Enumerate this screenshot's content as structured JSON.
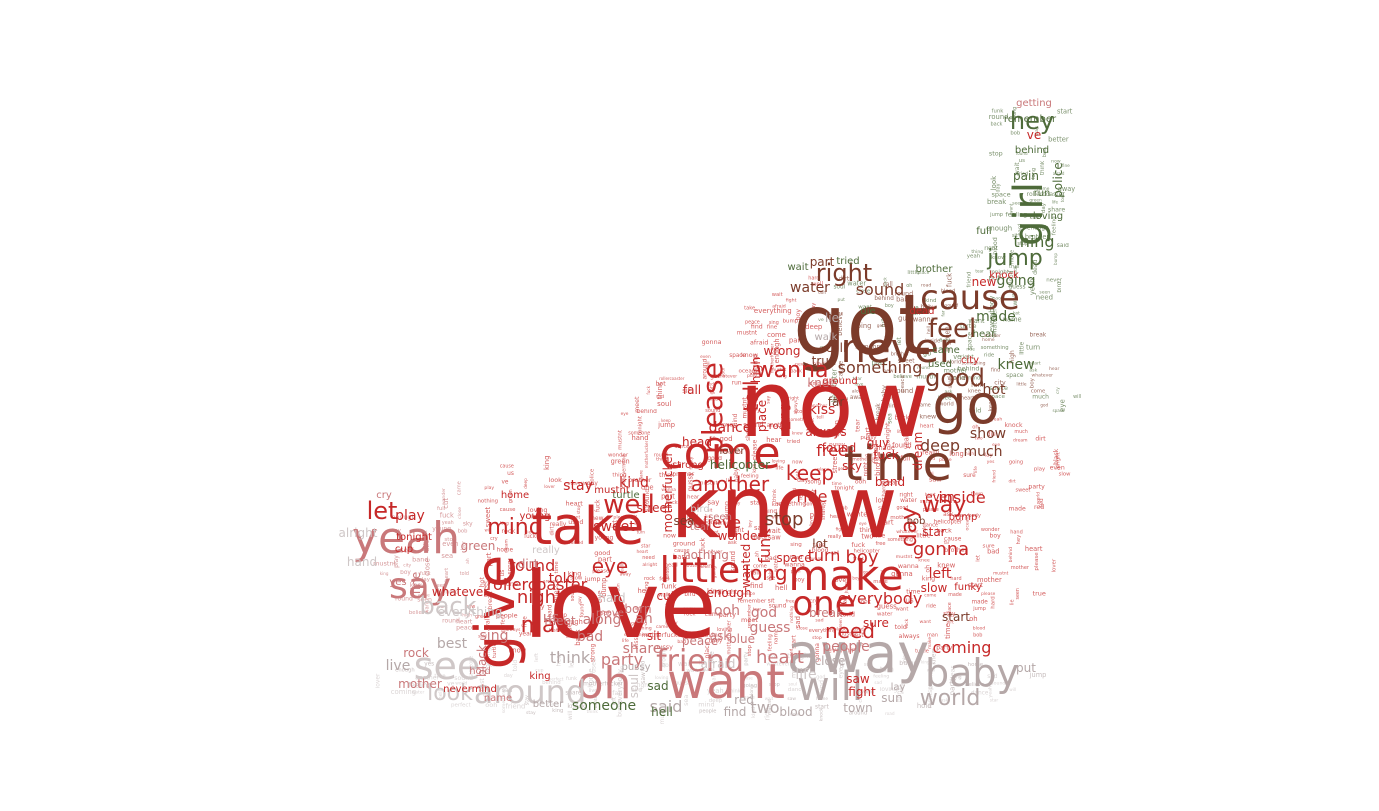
{
  "word_cloud": {
    "shape": "chili-pepper",
    "palette": {
      "red": "#c62828",
      "brown": "#7b3b2a",
      "pink": "#c9787a",
      "gray": "#b5a8a8",
      "green": "#4e6b3a",
      "light_gray": "#cfc7c7"
    },
    "words": [
      {
        "text": "now",
        "color": "red"
      },
      {
        "text": "know",
        "color": "red"
      },
      {
        "text": "love",
        "color": "red"
      },
      {
        "text": "got",
        "color": "brown"
      },
      {
        "text": "away",
        "color": "gray"
      },
      {
        "text": "take",
        "color": "red"
      },
      {
        "text": "give",
        "color": "red"
      },
      {
        "text": "time",
        "color": "brown"
      },
      {
        "text": "come",
        "color": "red"
      },
      {
        "text": "go",
        "color": "brown"
      },
      {
        "text": "make",
        "color": "red"
      },
      {
        "text": "never",
        "color": "brown"
      },
      {
        "text": "yeah",
        "color": "pink"
      },
      {
        "text": "want",
        "color": "pink"
      },
      {
        "text": "oh",
        "color": "pink"
      },
      {
        "text": "will",
        "color": "gray"
      },
      {
        "text": "baby",
        "color": "gray"
      },
      {
        "text": "girl",
        "color": "green"
      },
      {
        "text": "cause",
        "color": "brown"
      },
      {
        "text": "say",
        "color": "pink"
      },
      {
        "text": "little",
        "color": "red"
      },
      {
        "text": "see",
        "color": "light_gray"
      },
      {
        "text": "around",
        "color": "light_gray"
      },
      {
        "text": "one",
        "color": "red"
      },
      {
        "text": "feel",
        "color": "brown"
      },
      {
        "text": "good",
        "color": "brown"
      },
      {
        "text": "right",
        "color": "brown"
      },
      {
        "text": "hey",
        "color": "green"
      },
      {
        "text": "jump",
        "color": "green"
      },
      {
        "text": "friend",
        "color": "pink"
      },
      {
        "text": "well",
        "color": "red"
      },
      {
        "text": "please",
        "color": "red"
      },
      {
        "text": "day",
        "color": "red"
      },
      {
        "text": "way",
        "color": "red"
      },
      {
        "text": "need",
        "color": "red"
      },
      {
        "text": "let",
        "color": "red"
      },
      {
        "text": "mind",
        "color": "red"
      },
      {
        "text": "man",
        "color": "red"
      },
      {
        "text": "back",
        "color": "light_gray"
      },
      {
        "text": "world",
        "color": "gray"
      },
      {
        "text": "look",
        "color": "light_gray"
      },
      {
        "text": "eye",
        "color": "red"
      },
      {
        "text": "wanna",
        "color": "red"
      },
      {
        "text": "keep",
        "color": "red"
      },
      {
        "text": "another",
        "color": "red"
      },
      {
        "text": "something",
        "color": "brown"
      },
      {
        "text": "tell",
        "color": "red"
      },
      {
        "text": "gonna",
        "color": "red"
      },
      {
        "text": "long",
        "color": "red"
      },
      {
        "text": "night",
        "color": "red"
      },
      {
        "text": "heart",
        "color": "pink"
      },
      {
        "text": "party",
        "color": "pink"
      },
      {
        "text": "inside",
        "color": "red"
      },
      {
        "text": "thing",
        "color": "green"
      },
      {
        "text": "going",
        "color": "green"
      },
      {
        "text": "made",
        "color": "green"
      },
      {
        "text": "knew",
        "color": "green"
      },
      {
        "text": "hot",
        "color": "brown"
      },
      {
        "text": "show",
        "color": "brown"
      },
      {
        "text": "much",
        "color": "brown"
      },
      {
        "text": "deep",
        "color": "brown"
      },
      {
        "text": "sound",
        "color": "brown"
      },
      {
        "text": "water",
        "color": "brown"
      },
      {
        "text": "stop",
        "color": "brown"
      },
      {
        "text": "boy",
        "color": "red"
      },
      {
        "text": "turn",
        "color": "red"
      },
      {
        "text": "everybody",
        "color": "red"
      },
      {
        "text": "free",
        "color": "red"
      },
      {
        "text": "ride",
        "color": "red"
      },
      {
        "text": "believe",
        "color": "red"
      },
      {
        "text": "funk",
        "color": "red"
      },
      {
        "text": "rollercoaster",
        "color": "red"
      },
      {
        "text": "round",
        "color": "red"
      },
      {
        "text": "play",
        "color": "red"
      },
      {
        "text": "stay",
        "color": "red"
      },
      {
        "text": "told",
        "color": "red"
      },
      {
        "text": "left",
        "color": "red"
      },
      {
        "text": "kind",
        "color": "red"
      },
      {
        "text": "sweet",
        "color": "red"
      },
      {
        "text": "dance",
        "color": "red"
      },
      {
        "text": "song",
        "color": "red"
      },
      {
        "text": "place",
        "color": "red"
      },
      {
        "text": "always",
        "color": "red"
      },
      {
        "text": "kiss",
        "color": "red"
      },
      {
        "text": "high",
        "color": "red"
      },
      {
        "text": "dream",
        "color": "red"
      },
      {
        "text": "wrong",
        "color": "red"
      },
      {
        "text": "coming",
        "color": "red"
      },
      {
        "text": "two",
        "color": "gray"
      },
      {
        "text": "said",
        "color": "gray"
      },
      {
        "text": "think",
        "color": "gray"
      },
      {
        "text": "life",
        "color": "light_gray"
      },
      {
        "text": "best",
        "color": "gray"
      },
      {
        "text": "sing",
        "color": "pink"
      },
      {
        "text": "along",
        "color": "pink"
      },
      {
        "text": "bad",
        "color": "pink"
      },
      {
        "text": "share",
        "color": "pink"
      },
      {
        "text": "ah",
        "color": "pink"
      },
      {
        "text": "god",
        "color": "pink"
      },
      {
        "text": "ooh",
        "color": "pink"
      },
      {
        "text": "guess",
        "color": "pink"
      },
      {
        "text": "us",
        "color": "pink"
      },
      {
        "text": "getting",
        "color": "pink"
      },
      {
        "text": "ve",
        "color": "red"
      },
      {
        "text": "police",
        "color": "green"
      },
      {
        "text": "brother",
        "color": "green"
      },
      {
        "text": "someone",
        "color": "green"
      },
      {
        "text": "hell",
        "color": "green"
      },
      {
        "text": "find",
        "color": "gray"
      },
      {
        "text": "blood",
        "color": "gray"
      },
      {
        "text": "town",
        "color": "gray"
      },
      {
        "text": "better",
        "color": "gray"
      },
      {
        "text": "live",
        "color": "gray"
      },
      {
        "text": "everything",
        "color": "light_gray"
      },
      {
        "text": "hand",
        "color": "light_gray"
      },
      {
        "text": "fine",
        "color": "pink"
      },
      {
        "text": "yes",
        "color": "pink"
      },
      {
        "text": "rock",
        "color": "pink"
      },
      {
        "text": "alright",
        "color": "light_gray"
      },
      {
        "text": "soul",
        "color": "light_gray"
      },
      {
        "text": "ask",
        "color": "pink"
      },
      {
        "text": "peace",
        "color": "pink"
      },
      {
        "text": "people",
        "color": "pink"
      },
      {
        "text": "break",
        "color": "pink"
      },
      {
        "text": "enough",
        "color": "red"
      },
      {
        "text": "wanted",
        "color": "red"
      },
      {
        "text": "fall",
        "color": "red"
      },
      {
        "text": "head",
        "color": "red"
      },
      {
        "text": "found",
        "color": "red"
      },
      {
        "text": "sky",
        "color": "red"
      },
      {
        "text": "fuck",
        "color": "red"
      },
      {
        "text": "band",
        "color": "red"
      },
      {
        "text": "star",
        "color": "red"
      },
      {
        "text": "even",
        "color": "red"
      },
      {
        "text": "slow",
        "color": "red"
      },
      {
        "text": "bump",
        "color": "red"
      },
      {
        "text": "funky",
        "color": "red"
      },
      {
        "text": "guy",
        "color": "red"
      },
      {
        "text": "saw",
        "color": "red"
      },
      {
        "text": "fight",
        "color": "red"
      },
      {
        "text": "sun",
        "color": "gray"
      },
      {
        "text": "lay",
        "color": "gray"
      },
      {
        "text": "put",
        "color": "gray"
      },
      {
        "text": "close",
        "color": "gray"
      },
      {
        "text": "red",
        "color": "gray"
      },
      {
        "text": "lie",
        "color": "gray"
      },
      {
        "text": "walk",
        "color": "gray"
      },
      {
        "text": "call",
        "color": "brown"
      },
      {
        "text": "true",
        "color": "brown"
      },
      {
        "text": "part",
        "color": "brown"
      },
      {
        "text": "far",
        "color": "brown"
      },
      {
        "text": "lot",
        "color": "brown"
      },
      {
        "text": "space",
        "color": "red"
      },
      {
        "text": "sure",
        "color": "red"
      },
      {
        "text": "dead",
        "color": "red"
      },
      {
        "text": "new",
        "color": "red"
      },
      {
        "text": "pain",
        "color": "green"
      },
      {
        "text": "run",
        "color": "green"
      },
      {
        "text": "full",
        "color": "green"
      },
      {
        "text": "wait",
        "color": "green"
      },
      {
        "text": "helicopter",
        "color": "green"
      },
      {
        "text": "turtle",
        "color": "green"
      },
      {
        "text": "street",
        "color": "red"
      },
      {
        "text": "mustnt",
        "color": "red"
      },
      {
        "text": "home",
        "color": "red"
      },
      {
        "text": "young",
        "color": "red"
      },
      {
        "text": "strong",
        "color": "red"
      },
      {
        "text": "road",
        "color": "red"
      },
      {
        "text": "sit",
        "color": "red"
      },
      {
        "text": "cut",
        "color": "red"
      },
      {
        "text": "born",
        "color": "pink"
      },
      {
        "text": "dirt",
        "color": "pink"
      },
      {
        "text": "meet",
        "color": "pink"
      },
      {
        "text": "nothing",
        "color": "pink"
      },
      {
        "text": "blue",
        "color": "pink"
      },
      {
        "text": "wonder",
        "color": "red"
      },
      {
        "text": "green",
        "color": "pink"
      },
      {
        "text": "king",
        "color": "red"
      },
      {
        "text": "black",
        "color": "pink"
      },
      {
        "text": "really",
        "color": "light_gray"
      },
      {
        "text": "cry",
        "color": "pink"
      },
      {
        "text": "tonight",
        "color": "red"
      },
      {
        "text": "cup",
        "color": "red"
      },
      {
        "text": "whatever",
        "color": "red"
      },
      {
        "text": "motherfucker",
        "color": "red"
      },
      {
        "text": "knee",
        "color": "pink"
      },
      {
        "text": "ground",
        "color": "red"
      },
      {
        "text": "sea",
        "color": "brown"
      },
      {
        "text": "lover",
        "color": "brown"
      },
      {
        "text": "knock",
        "color": "red"
      },
      {
        "text": "city",
        "color": "red"
      },
      {
        "text": "hear",
        "color": "green"
      },
      {
        "text": "used",
        "color": "green"
      },
      {
        "text": "came",
        "color": "green"
      },
      {
        "text": "behind",
        "color": "green"
      },
      {
        "text": "remember",
        "color": "green"
      },
      {
        "text": "loving",
        "color": "green"
      },
      {
        "text": "tried",
        "color": "green"
      },
      {
        "text": "die",
        "color": "green"
      },
      {
        "text": "bob",
        "color": "brown"
      },
      {
        "text": "start",
        "color": "brown"
      },
      {
        "text": "nevermind",
        "color": "red"
      },
      {
        "text": "sad",
        "color": "green"
      },
      {
        "text": "pussy",
        "color": "gray"
      },
      {
        "text": "move",
        "color": "pink"
      },
      {
        "text": "hold",
        "color": "pink"
      },
      {
        "text": "mother",
        "color": "pink"
      },
      {
        "text": "name",
        "color": "pink"
      },
      {
        "text": "afraid",
        "color": "light_gray"
      },
      {
        "text": "hard",
        "color": "light_gray"
      },
      {
        "text": "bird",
        "color": "light_gray"
      },
      {
        "text": "seen",
        "color": "pink"
      },
      {
        "text": "tear",
        "color": "pink"
      },
      {
        "text": "feeling",
        "color": "red"
      },
      {
        "text": "ocean",
        "color": "red"
      },
      {
        "text": "perfect",
        "color": "red"
      }
    ]
  }
}
